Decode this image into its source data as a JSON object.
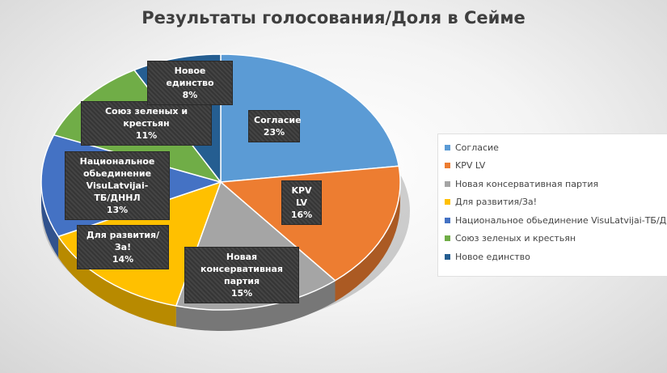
{
  "chart_data": {
    "type": "pie",
    "title": "Результаты голосования/Доля в Сейме",
    "legend_position": "right",
    "slices": [
      {
        "name": "Согласие",
        "value": 23,
        "label": "23%",
        "color": "#5b9bd5"
      },
      {
        "name": "KPV LV",
        "value": 16,
        "label": "16%",
        "color": "#ed7d31"
      },
      {
        "name": "Новая консервативная партия",
        "value": 15,
        "label": "15%",
        "color": "#a5a5a5"
      },
      {
        "name": "Для развития/За!",
        "value": 14,
        "label": "14%",
        "color": "#ffc000"
      },
      {
        "name": "Национальное обьединение VisuLatvijai-ТБ/ДННЛ",
        "value": 13,
        "label": "13%",
        "color": "#4472c4"
      },
      {
        "name": "Союз зеленых и крестьян",
        "value": 11,
        "label": "11%",
        "color": "#70ad47"
      },
      {
        "name": "Новое единство",
        "value": 8,
        "label": "8%",
        "color": "#255e91"
      }
    ],
    "data_labels": [
      {
        "lines": [
          "Согласие"
        ],
        "pct": "23%"
      },
      {
        "lines": [
          "KPV LV"
        ],
        "pct": "16%"
      },
      {
        "lines": [
          "Новая консервативная",
          "партия"
        ],
        "pct": "15%"
      },
      {
        "lines": [
          "Для развития/За!"
        ],
        "pct": "14%"
      },
      {
        "lines": [
          "Национальное",
          "обьединение VisuLatvijai-",
          "ТБ/ДННЛ"
        ],
        "pct": "13%"
      },
      {
        "lines": [
          "Союз зеленых и крестьян"
        ],
        "pct": "11%"
      },
      {
        "lines": [
          "Новое единство"
        ],
        "pct": "8%"
      }
    ]
  }
}
